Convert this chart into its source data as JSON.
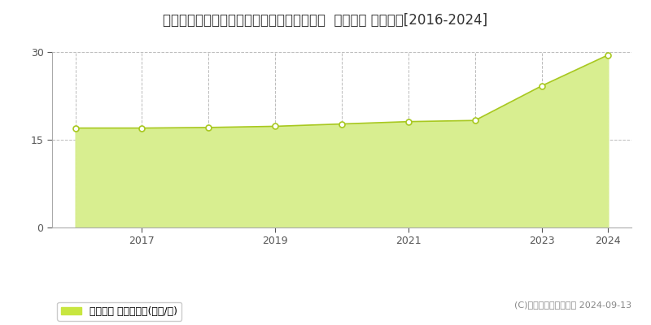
{
  "title": "北海道札幌市白石区菊水元町７条２丁目３番  地価公示 地価推移[2016-2024]",
  "x": [
    2016,
    2017,
    2018,
    2019,
    2020,
    2021,
    2022,
    2023,
    2024
  ],
  "y": [
    17.0,
    17.0,
    17.1,
    17.3,
    17.7,
    18.1,
    18.3,
    24.2,
    29.5
  ],
  "ylim": [
    0,
    30
  ],
  "yticks": [
    0,
    15,
    30
  ],
  "xticks_labels": [
    2017,
    2019,
    2021,
    2023,
    2024
  ],
  "xgrid_lines": [
    2016,
    2017,
    2018,
    2019,
    2020,
    2021,
    2022,
    2023,
    2024
  ],
  "fill_color": "#d8ee90",
  "line_color": "#a8c820",
  "marker_facecolor": "#ffffff",
  "marker_edgecolor": "#a8c820",
  "grid_color": "#bbbbbb",
  "bg_color": "#ffffff",
  "legend_label": "地価公示 平均坪単価(万円/坪)",
  "legend_color": "#c8e640",
  "copyright_text": "(C)土地価格ドットコム 2024-09-13",
  "title_fontsize": 12,
  "tick_fontsize": 9,
  "legend_fontsize": 9,
  "copyright_fontsize": 8
}
